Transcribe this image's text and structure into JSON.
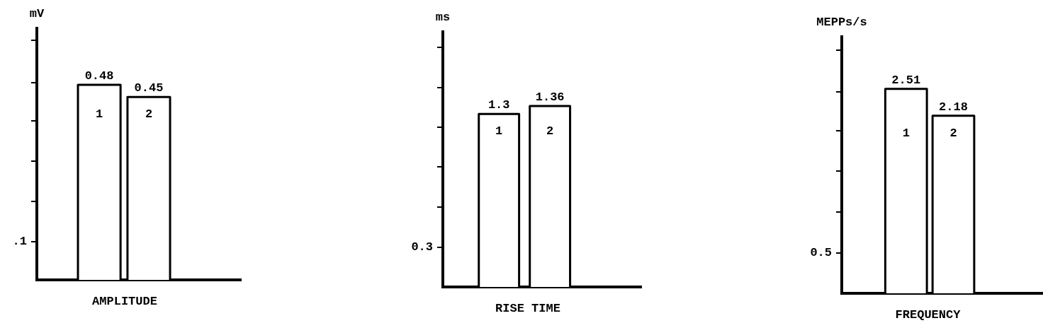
{
  "chart_data": [
    {
      "type": "bar",
      "categories": [
        "1",
        "2"
      ],
      "values": [
        0.48,
        0.45
      ],
      "color": "#ffffff",
      "data_labels": true,
      "xlabel": "AMPLITUDE",
      "ylabel": "mV",
      "annotations": [
        ".1"
      ]
    },
    {
      "type": "bar",
      "categories": [
        "1",
        "2"
      ],
      "values": [
        1.3,
        1.36
      ],
      "color": "#ffffff",
      "data_labels": true,
      "xlabel": "RISE TIME",
      "ylabel": "ms",
      "annotations": [
        "0.3"
      ]
    },
    {
      "type": "bar",
      "categories": [
        "1",
        "2"
      ],
      "values": [
        2.51,
        2.18
      ],
      "color": "#ffffff",
      "data_labels": true,
      "xlabel": "FREQUENCY",
      "ylabel": "MEPPs/s",
      "annotations": [
        "0.5"
      ]
    }
  ]
}
